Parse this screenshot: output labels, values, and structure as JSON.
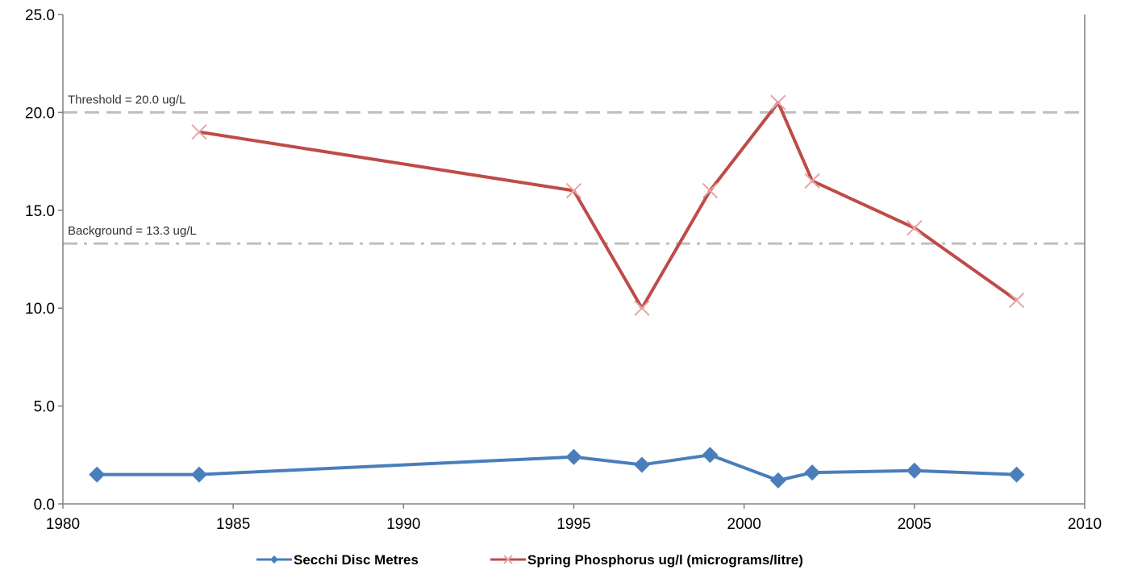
{
  "chart_data": {
    "type": "line",
    "title": "",
    "xlabel": "",
    "ylabel": "",
    "xlim": [
      1980,
      2010
    ],
    "ylim": [
      0,
      25
    ],
    "x_ticks": [
      1980,
      1985,
      1990,
      1995,
      2000,
      2005,
      2010
    ],
    "x_tick_labels": [
      "1980",
      "1985",
      "1990",
      "1995",
      "2000",
      "2005",
      "2010"
    ],
    "y_ticks": [
      0,
      5,
      10,
      15,
      20,
      25
    ],
    "y_tick_labels": [
      "0.0",
      "5.0",
      "10.0",
      "15.0",
      "20.0",
      "25.0"
    ],
    "grid": false,
    "legend_position": "bottom",
    "series": [
      {
        "name": "Secchi Disc Metres",
        "color": "#4a7ebb",
        "marker": "diamond",
        "x": [
          1981,
          1984,
          1995,
          1997,
          1999,
          2001,
          2002,
          2005,
          2008
        ],
        "y": [
          1.5,
          1.5,
          2.4,
          2.0,
          2.5,
          1.2,
          1.6,
          1.7,
          1.5
        ]
      },
      {
        "name": "Spring Phosphorus ug/l (micrograms/litre)",
        "color": "#be4b48",
        "marker": "x",
        "x": [
          1984,
          1995,
          1997,
          1999,
          2001,
          2002,
          2005,
          2008
        ],
        "y": [
          19.0,
          16.0,
          10.0,
          16.0,
          20.5,
          16.5,
          14.1,
          10.4
        ]
      }
    ],
    "reference_lines": [
      {
        "label": "Threshold = 20.0 ug/L",
        "y": 20.0,
        "color": "#bfbfbf",
        "style": "dashed"
      },
      {
        "label": "Background = 13.3 ug/L",
        "y": 13.3,
        "color": "#bfbfbf",
        "style": "dash-dot"
      }
    ]
  }
}
